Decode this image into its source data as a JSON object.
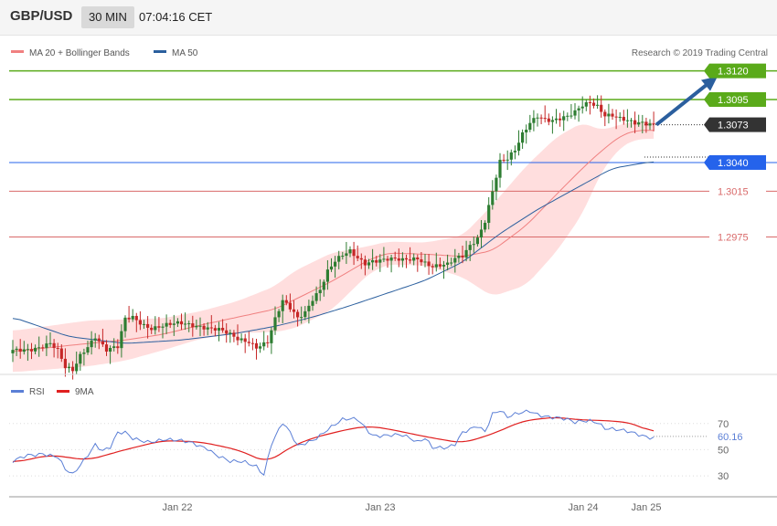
{
  "header": {
    "symbol": "GBP/USD",
    "timeframe": "30 MIN",
    "time": "07:04:16 CET"
  },
  "credit": "Research © 2019 Trading Central",
  "colors": {
    "ma20": "#f08080",
    "ma50": "#2b5f9e",
    "band_fill": "#ffdede",
    "up": "#2e7d32",
    "down": "#c62828",
    "green_level": "#5aaa1a",
    "red_level": "#d96a6a",
    "blue_level": "#2563eb",
    "dark_tag": "#333333",
    "arrow": "#2b5f9e",
    "rsi": "#5b7fd6",
    "ma9": "#e02020"
  },
  "chart_data": [
    {
      "type": "line",
      "title": "",
      "legend": [
        {
          "name": "MA 20 + Bollinger Bands",
          "color": "#f08080"
        },
        {
          "name": "MA 50",
          "color": "#2b5f9e"
        }
      ],
      "x_ticks": [
        "Jan 22",
        "Jan 23",
        "Jan 24",
        "Jan 25"
      ],
      "ylim": [
        1.2855,
        1.315
      ],
      "levels": [
        {
          "label": "1.3120",
          "value": 1.312,
          "kind": "resistance-green"
        },
        {
          "label": "1.3095",
          "value": 1.3095,
          "kind": "resistance-green"
        },
        {
          "label": "1.3073",
          "value": 1.3073,
          "kind": "last-price"
        },
        {
          "label": "1.3040",
          "value": 1.304,
          "kind": "pivot-blue"
        },
        {
          "label": "1.3015",
          "value": 1.3015,
          "kind": "support-red"
        },
        {
          "label": "1.2975",
          "value": 1.2975,
          "kind": "support-red"
        }
      ],
      "ma20_knots": [
        [
          0,
          1.2875
        ],
        [
          20,
          1.2882
        ],
        [
          30,
          1.2885
        ],
        [
          40,
          1.289
        ],
        [
          50,
          1.2898
        ],
        [
          60,
          1.2905
        ],
        [
          70,
          1.2912
        ],
        [
          75,
          1.292
        ],
        [
          85,
          1.2936
        ],
        [
          95,
          1.2955
        ],
        [
          100,
          1.2961
        ],
        [
          110,
          1.296
        ],
        [
          120,
          1.2958
        ],
        [
          128,
          1.2963
        ],
        [
          137,
          1.2985
        ],
        [
          145,
          1.3012
        ],
        [
          152,
          1.3035
        ],
        [
          157,
          1.305
        ],
        [
          162,
          1.3063
        ],
        [
          166,
          1.3068
        ],
        [
          171,
          1.3068
        ]
      ],
      "band_half_knots": [
        [
          0,
          1.0018
        ],
        [
          20,
          1.002
        ],
        [
          30,
          1.0018
        ],
        [
          40,
          1.0014
        ],
        [
          50,
          1.0012
        ],
        [
          60,
          1.0014
        ],
        [
          70,
          1.002
        ],
        [
          75,
          1.0025
        ],
        [
          85,
          1.0025
        ],
        [
          95,
          1.0012
        ],
        [
          100,
          1.001
        ],
        [
          110,
          1.001
        ],
        [
          120,
          1.0018
        ],
        [
          128,
          1.004
        ],
        [
          137,
          1.0052
        ],
        [
          145,
          1.005
        ],
        [
          152,
          1.004
        ],
        [
          157,
          1.0018
        ],
        [
          162,
          1.001
        ],
        [
          166,
          1.0008
        ],
        [
          171,
          1.0007
        ]
      ],
      "ma50_knots": [
        [
          0,
          1.2905
        ],
        [
          15,
          1.2888
        ],
        [
          30,
          1.2882
        ],
        [
          45,
          1.2885
        ],
        [
          60,
          1.2891
        ],
        [
          70,
          1.2897
        ],
        [
          80,
          1.2905
        ],
        [
          90,
          1.2915
        ],
        [
          100,
          1.2926
        ],
        [
          110,
          1.2937
        ],
        [
          120,
          1.2953
        ],
        [
          130,
          1.2978
        ],
        [
          140,
          1.2999
        ],
        [
          150,
          1.3017
        ],
        [
          160,
          1.3035
        ],
        [
          171,
          1.3041
        ]
      ],
      "price_knots": [
        [
          0,
          1.2875
        ],
        [
          5,
          1.2878
        ],
        [
          10,
          1.2882
        ],
        [
          12,
          1.2875
        ],
        [
          14,
          1.286
        ],
        [
          16,
          1.2858
        ],
        [
          18,
          1.2872
        ],
        [
          22,
          1.2889
        ],
        [
          25,
          1.2876
        ],
        [
          28,
          1.2878
        ],
        [
          30,
          1.2903
        ],
        [
          32,
          1.2905
        ],
        [
          35,
          1.2899
        ],
        [
          37,
          1.2896
        ],
        [
          40,
          1.2897
        ],
        [
          45,
          1.2899
        ],
        [
          50,
          1.2898
        ],
        [
          55,
          1.2894
        ],
        [
          60,
          1.2885
        ],
        [
          63,
          1.2884
        ],
        [
          65,
          1.288
        ],
        [
          68,
          1.2884
        ],
        [
          70,
          1.2903
        ],
        [
          72,
          1.2918
        ],
        [
          74,
          1.2912
        ],
        [
          76,
          1.2904
        ],
        [
          78,
          1.291
        ],
        [
          80,
          1.2922
        ],
        [
          82,
          1.293
        ],
        [
          84,
          1.2945
        ],
        [
          86,
          1.2953
        ],
        [
          88,
          1.2958
        ],
        [
          90,
          1.2962
        ],
        [
          92,
          1.2957
        ],
        [
          94,
          1.2953
        ],
        [
          96,
          1.2955
        ],
        [
          100,
          1.2955
        ],
        [
          104,
          1.2954
        ],
        [
          108,
          1.2957
        ],
        [
          112,
          1.295
        ],
        [
          116,
          1.295
        ],
        [
          118,
          1.2955
        ],
        [
          120,
          1.2958
        ],
        [
          122,
          1.2968
        ],
        [
          124,
          1.2975
        ],
        [
          126,
          1.299
        ],
        [
          128,
          1.3015
        ],
        [
          130,
          1.304
        ],
        [
          132,
          1.3042
        ],
        [
          134,
          1.305
        ],
        [
          136,
          1.3065
        ],
        [
          138,
          1.3076
        ],
        [
          140,
          1.3082
        ],
        [
          142,
          1.3078
        ],
        [
          144,
          1.3076
        ],
        [
          146,
          1.3077
        ],
        [
          148,
          1.3079
        ],
        [
          150,
          1.3084
        ],
        [
          152,
          1.3091
        ],
        [
          154,
          1.3094
        ],
        [
          156,
          1.309
        ],
        [
          158,
          1.3081
        ],
        [
          160,
          1.308
        ],
        [
          162,
          1.3077
        ],
        [
          164,
          1.3076
        ],
        [
          166,
          1.3075
        ],
        [
          168,
          1.3076
        ],
        [
          171,
          1.3074
        ]
      ]
    },
    {
      "type": "line",
      "title": "",
      "legend": [
        {
          "name": "RSI",
          "color": "#5b7fd6"
        },
        {
          "name": "9MA",
          "color": "#e02020"
        }
      ],
      "ylim": [
        14,
        88
      ],
      "y_ticks": [
        30,
        50,
        70
      ],
      "last_value": "60.16",
      "rsi_knots": [
        [
          0,
          40
        ],
        [
          4,
          46
        ],
        [
          8,
          48
        ],
        [
          12,
          44
        ],
        [
          14,
          34
        ],
        [
          16,
          30
        ],
        [
          18,
          38
        ],
        [
          22,
          55
        ],
        [
          24,
          50
        ],
        [
          26,
          52
        ],
        [
          28,
          62
        ],
        [
          30,
          62
        ],
        [
          32,
          58
        ],
        [
          36,
          57
        ],
        [
          40,
          58
        ],
        [
          44,
          56
        ],
        [
          48,
          55
        ],
        [
          52,
          52
        ],
        [
          54,
          47
        ],
        [
          58,
          40
        ],
        [
          62,
          40
        ],
        [
          65,
          38
        ],
        [
          67,
          32
        ],
        [
          69,
          55
        ],
        [
          72,
          70
        ],
        [
          74,
          62
        ],
        [
          76,
          52
        ],
        [
          80,
          58
        ],
        [
          84,
          66
        ],
        [
          88,
          72
        ],
        [
          92,
          73
        ],
        [
          96,
          62
        ],
        [
          100,
          61
        ],
        [
          104,
          60
        ],
        [
          108,
          56
        ],
        [
          110,
          60
        ],
        [
          112,
          53
        ],
        [
          116,
          51
        ],
        [
          118,
          53
        ],
        [
          120,
          62
        ],
        [
          124,
          69
        ],
        [
          126,
          65
        ],
        [
          128,
          78
        ],
        [
          130,
          80
        ],
        [
          132,
          74
        ],
        [
          134,
          76
        ],
        [
          138,
          80
        ],
        [
          140,
          78
        ],
        [
          144,
          75
        ],
        [
          148,
          72
        ],
        [
          150,
          70
        ],
        [
          152,
          72
        ],
        [
          154,
          73
        ],
        [
          156,
          72
        ],
        [
          158,
          67
        ],
        [
          162,
          64
        ],
        [
          166,
          62
        ],
        [
          171,
          60
        ]
      ],
      "ma9_knots": [
        [
          0,
          40
        ],
        [
          10,
          46
        ],
        [
          20,
          42
        ],
        [
          30,
          50
        ],
        [
          40,
          57
        ],
        [
          50,
          56
        ],
        [
          60,
          50
        ],
        [
          68,
          40
        ],
        [
          74,
          52
        ],
        [
          80,
          59
        ],
        [
          90,
          66
        ],
        [
          95,
          68
        ],
        [
          100,
          66
        ],
        [
          110,
          60
        ],
        [
          120,
          55
        ],
        [
          128,
          62
        ],
        [
          136,
          72
        ],
        [
          145,
          75
        ],
        [
          150,
          73
        ],
        [
          160,
          72
        ],
        [
          166,
          70
        ],
        [
          171,
          62
        ]
      ]
    }
  ]
}
